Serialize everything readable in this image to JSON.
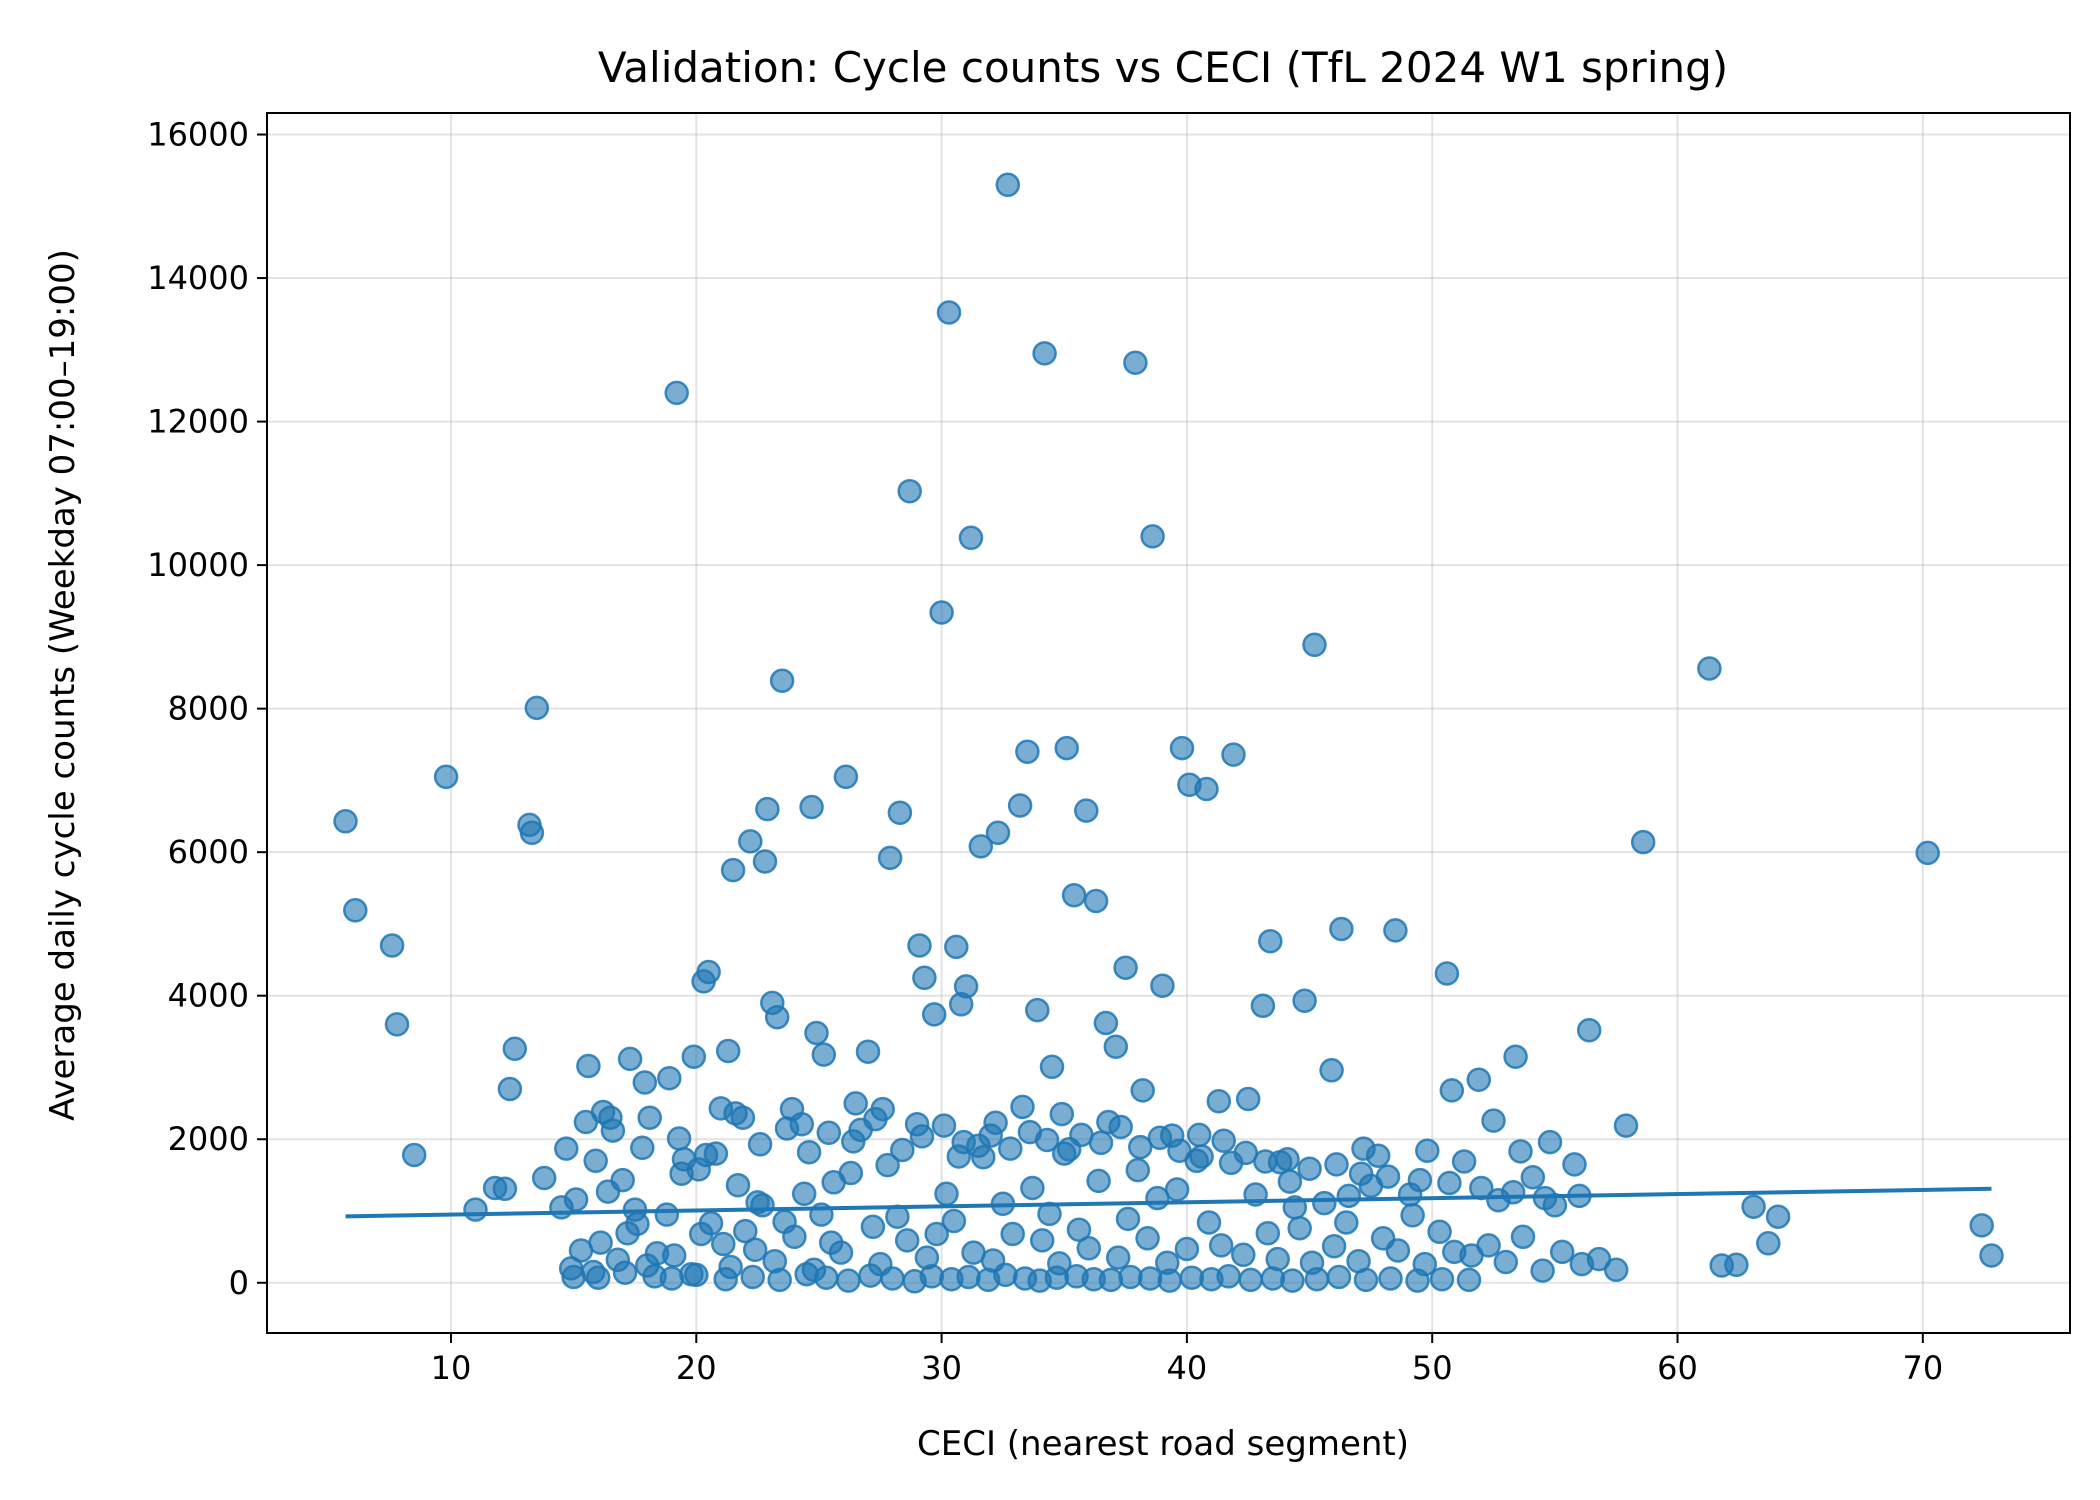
{
  "chart_data": {
    "type": "scatter",
    "title": "Validation: Cycle counts vs CECI (TfL 2024 W1 spring)",
    "xlabel": "CECI (nearest road segment)",
    "ylabel": "Average daily cycle counts (Weekday 07:00–19:00)",
    "xlim": [
      2.5,
      76
    ],
    "ylim": [
      -700,
      16300
    ],
    "xticks": [
      10,
      20,
      30,
      40,
      50,
      60,
      70
    ],
    "yticks": [
      0,
      2000,
      4000,
      6000,
      8000,
      10000,
      12000,
      14000,
      16000
    ],
    "grid": true,
    "point_color": "#1f77b4",
    "line_color": "#1f77b4",
    "trend_line": {
      "x": [
        5.7,
        72.8
      ],
      "y": [
        925,
        1310
      ]
    },
    "series": [
      {
        "x": [
          5.7,
          6.1,
          7.6,
          7.8,
          8.5,
          9.8,
          11.0,
          11.8,
          12.2,
          12.4,
          12.6,
          13.2,
          13.3,
          13.5,
          13.8,
          14.5,
          14.7,
          15.1,
          15.6,
          15.9,
          16.2,
          16.5,
          17.0,
          17.3,
          17.5,
          17.9,
          18.1,
          18.9,
          19.2,
          19.5,
          19.9,
          20.1,
          20.3,
          20.5,
          20.8,
          21.0,
          21.3,
          21.5,
          21.9,
          22.2,
          22.5,
          22.8,
          22.9,
          23.1,
          23.3,
          23.5,
          23.9,
          24.3,
          24.7,
          24.9,
          25.2,
          25.6,
          26.1,
          26.5,
          27.0,
          27.6,
          27.9,
          28.3,
          28.7,
          29.1,
          29.3,
          29.7,
          30.0,
          30.3,
          30.6,
          30.8,
          31.0,
          31.2,
          31.6,
          32.0,
          32.3,
          32.7,
          33.2,
          33.5,
          33.9,
          34.2,
          34.5,
          34.9,
          35.1,
          35.4,
          35.9,
          36.3,
          36.7,
          37.1,
          37.5,
          37.9,
          38.2,
          38.6,
          39.0,
          39.4,
          39.8,
          40.1,
          40.4,
          40.8,
          41.3,
          41.9,
          42.5,
          43.1,
          43.4,
          43.8,
          44.4,
          44.8,
          45.2,
          45.9,
          46.3,
          46.6,
          47.2,
          47.8,
          48.5,
          49.1,
          49.8,
          50.6,
          50.8,
          51.3,
          51.9,
          52.7,
          53.4,
          54.1,
          55.0,
          56.4,
          57.9,
          58.6,
          61.3,
          61.8,
          62.4,
          63.1,
          63.7,
          64.1,
          70.2,
          72.4,
          72.8,
          14.9,
          15.3,
          15.8,
          16.1,
          16.4,
          16.8,
          17.2,
          17.6,
          18.0,
          18.4,
          18.8,
          19.1,
          19.4,
          19.8,
          20.2,
          20.6,
          21.1,
          21.4,
          21.7,
          22.0,
          22.4,
          22.7,
          23.2,
          23.6,
          24.0,
          24.4,
          24.8,
          25.1,
          25.5,
          25.9,
          26.3,
          26.7,
          27.2,
          27.5,
          27.8,
          28.2,
          28.6,
          29.0,
          29.4,
          29.8,
          30.2,
          30.5,
          30.9,
          31.3,
          31.7,
          32.1,
          32.5,
          32.9,
          33.3,
          33.7,
          34.1,
          34.4,
          34.8,
          35.2,
          35.6,
          36.0,
          36.4,
          36.8,
          37.2,
          37.6,
          38.0,
          38.4,
          38.8,
          39.2,
          39.6,
          40.0,
          40.5,
          40.9,
          41.4,
          41.8,
          42.3,
          42.8,
          43.3,
          43.7,
          44.2,
          44.6,
          45.1,
          45.6,
          46.0,
          46.5,
          47.0,
          47.5,
          48.0,
          48.6,
          49.2,
          49.7,
          50.3,
          50.9,
          51.6,
          52.3,
          53.0,
          53.7,
          54.5,
          55.3,
          56.1,
          56.8,
          57.5,
          15.0,
          16.0,
          17.1,
          18.3,
          19.0,
          20.0,
          21.2,
          22.3,
          23.4,
          24.5,
          25.3,
          26.2,
          27.1,
          28.0,
          28.9,
          29.6,
          30.4,
          31.1,
          31.9,
          32.6,
          33.4,
          34.0,
          34.7,
          35.5,
          36.2,
          36.9,
          37.7,
          38.5,
          39.3,
          40.2,
          41.0,
          41.7,
          42.6,
          43.5,
          44.3,
          45.3,
          46.2,
          47.3,
          48.3,
          49.4,
          50.4,
          51.5,
          52.5,
          53.6,
          54.8,
          55.8,
          15.5,
          16.6,
          17.8,
          19.3,
          20.4,
          21.6,
          22.6,
          23.7,
          24.6,
          25.4,
          26.4,
          27.3,
          28.4,
          29.2,
          30.1,
          30.7,
          31.5,
          32.2,
          32.8,
          33.6,
          34.3,
          35.0,
          35.7,
          36.5,
          37.3,
          38.1,
          38.9,
          39.7,
          40.6,
          41.5,
          42.4,
          43.2,
          44.1,
          45.0,
          46.1,
          47.1,
          48.2,
          49.5,
          50.7,
          52.0,
          53.3,
          54.6,
          56.0
        ],
        "y": [
          6430,
          5190,
          4700,
          3600,
          1780,
          7050,
          1020,
          1320,
          1310,
          2700,
          3260,
          6380,
          6270,
          8010,
          1460,
          1050,
          1870,
          1160,
          3020,
          1700,
          2380,
          2300,
          1430,
          3120,
          1020,
          2790,
          2300,
          2850,
          12400,
          1720,
          3150,
          1580,
          4200,
          4330,
          1800,
          2430,
          3230,
          5750,
          2300,
          6150,
          1120,
          5870,
          6600,
          3900,
          3700,
          8390,
          2420,
          2210,
          6630,
          3480,
          3180,
          1400,
          7050,
          2500,
          3220,
          2420,
          5920,
          6550,
          11030,
          4700,
          4250,
          3740,
          9340,
          13520,
          4680,
          3880,
          4130,
          10380,
          6080,
          2050,
          6270,
          15300,
          6650,
          7400,
          3800,
          12950,
          3010,
          2350,
          7450,
          5400,
          6580,
          5320,
          3620,
          3290,
          4390,
          12820,
          2680,
          10400,
          4140,
          2050,
          7450,
          6940,
          1700,
          6880,
          2530,
          7360,
          2560,
          3860,
          4760,
          1680,
          1050,
          3930,
          8890,
          2960,
          4930,
          1210,
          1870,
          1770,
          4910,
          1230,
          1840,
          4310,
          2680,
          1690,
          2830,
          1150,
          3150,
          1470,
          1080,
          3520,
          2190,
          6140,
          8560,
          240,
          250,
          1060,
          550,
          920,
          5990,
          800,
          380,
          200,
          450,
          150,
          560,
          1270,
          320,
          690,
          820,
          240,
          410,
          950,
          380,
          1520,
          120,
          680,
          830,
          540,
          220,
          1360,
          720,
          460,
          1080,
          300,
          850,
          640,
          1240,
          180,
          950,
          560,
          420,
          1530,
          2130,
          780,
          260,
          1640,
          920,
          590,
          2210,
          350,
          680,
          1240,
          860,
          1960,
          420,
          1750,
          310,
          1100,
          680,
          2450,
          1320,
          590,
          960,
          270,
          1860,
          740,
          480,
          1420,
          2240,
          350,
          890,
          1570,
          620,
          1180,
          280,
          1300,
          470,
          2060,
          840,
          520,
          1670,
          390,
          1230,
          690,
          330,
          1410,
          760,
          280,
          1110,
          510,
          840,
          300,
          1350,
          620,
          450,
          940,
          260,
          710,
          430,
          380,
          520,
          290,
          640,
          170,
          430,
          260,
          330,
          180,
          80,
          70,
          140,
          90,
          60,
          110,
          50,
          80,
          40,
          120,
          70,
          30,
          100,
          60,
          20,
          90,
          50,
          80,
          40,
          110,
          60,
          30,
          70,
          90,
          50,
          40,
          80,
          60,
          30,
          70,
          50,
          90,
          40,
          60,
          30,
          50,
          80,
          40,
          60,
          30,
          50,
          40,
          2260,
          1830,
          1960,
          1650,
          2240,
          2120,
          1880,
          2010,
          1780,
          2360,
          1930,
          2150,
          1820,
          2090,
          1970,
          2280,
          1850,
          2040,
          2190,
          1760,
          1910,
          2230,
          1870,
          2100,
          1990,
          1800,
          2060,
          1950,
          2170,
          1890,
          2020,
          1840,
          1760,
          1980,
          1810,
          1690,
          1720,
          1590,
          1650,
          1520,
          1480,
          1430,
          1390,
          1320,
          1260,
          1180,
          1210
        ]
      }
    ]
  }
}
